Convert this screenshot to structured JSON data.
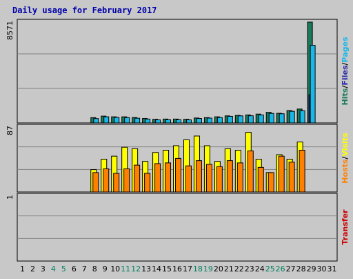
{
  "page_title": "Daily usage for February 2017",
  "colors": {
    "background": "#c8c8c8",
    "panel": "#c8c8c8",
    "gridline": "#808080",
    "hits": "#1a7a5a",
    "files": "#2a2aa8",
    "pages": "#17b8e8",
    "visits": "#ffff00",
    "hosts": "#ff8000",
    "transfer": "#cc0000",
    "title": "#0000aa",
    "weekend_label": "#008060",
    "weekday_label": "#000000"
  },
  "chart_data": [
    {
      "type": "bar",
      "panel": "hits-files-pages",
      "y_axis_max_label": "8571",
      "ylim": [
        0,
        8571
      ],
      "legend": [
        "Hits",
        "Files",
        "Pages"
      ],
      "series": [
        {
          "name": "Hits",
          "values": [
            0,
            0,
            0,
            0,
            0,
            0,
            0,
            450,
            580,
            520,
            520,
            460,
            380,
            310,
            330,
            330,
            310,
            420,
            450,
            520,
            600,
            640,
            680,
            750,
            900,
            820,
            1050,
            1180,
            8571,
            0,
            0
          ]
        },
        {
          "name": "Files",
          "values": [
            0,
            0,
            0,
            0,
            0,
            0,
            0,
            0,
            0,
            0,
            0,
            0,
            0,
            0,
            0,
            0,
            0,
            0,
            0,
            0,
            0,
            0,
            0,
            0,
            0,
            0,
            0,
            0,
            2400,
            0,
            0
          ]
        },
        {
          "name": "Pages",
          "values": [
            0,
            0,
            0,
            0,
            0,
            0,
            0,
            370,
            520,
            470,
            450,
            400,
            330,
            260,
            270,
            270,
            260,
            380,
            410,
            460,
            560,
            600,
            610,
            680,
            810,
            780,
            990,
            1030,
            6600,
            0,
            0
          ]
        }
      ]
    },
    {
      "type": "bar",
      "panel": "visits-hosts",
      "y_axis_max_label": "87",
      "ylim": [
        0,
        87
      ],
      "legend": [
        "Hosts",
        "Visits"
      ],
      "series": [
        {
          "name": "Visits",
          "values": [
            0,
            0,
            0,
            0,
            0,
            0,
            0,
            30,
            44,
            48,
            60,
            58,
            41,
            53,
            56,
            62,
            70,
            75,
            62,
            41,
            58,
            56,
            80,
            44,
            26,
            50,
            44,
            67,
            0,
            0,
            0
          ]
        },
        {
          "name": "Hosts",
          "values": [
            0,
            0,
            0,
            0,
            0,
            0,
            0,
            26,
            31,
            25,
            31,
            36,
            25,
            38,
            39,
            45,
            35,
            42,
            37,
            34,
            42,
            39,
            55,
            33,
            26,
            48,
            40,
            56,
            0,
            0,
            0
          ]
        }
      ]
    },
    {
      "type": "bar",
      "panel": "transfer",
      "y_axis_max_label": "1",
      "ylim": [
        0,
        1
      ],
      "legend": [
        "Transfer"
      ],
      "series": [
        {
          "name": "Transfer",
          "values": [
            0,
            0,
            0,
            0,
            0,
            0,
            0,
            0,
            0,
            0,
            0,
            0,
            0,
            0,
            0,
            0,
            0,
            0,
            0,
            0,
            0,
            0,
            0,
            0,
            0,
            0,
            0,
            0,
            0,
            0,
            0
          ]
        }
      ]
    }
  ],
  "days": [
    "1",
    "2",
    "3",
    "4",
    "5",
    "6",
    "7",
    "8",
    "9",
    "10",
    "11",
    "12",
    "13",
    "14",
    "15",
    "16",
    "17",
    "18",
    "19",
    "20",
    "21",
    "22",
    "23",
    "24",
    "25",
    "26",
    "27",
    "28",
    "29",
    "30",
    "31"
  ],
  "weekend_days": [
    "4",
    "5",
    "11",
    "12",
    "18",
    "19",
    "25",
    "26"
  ]
}
